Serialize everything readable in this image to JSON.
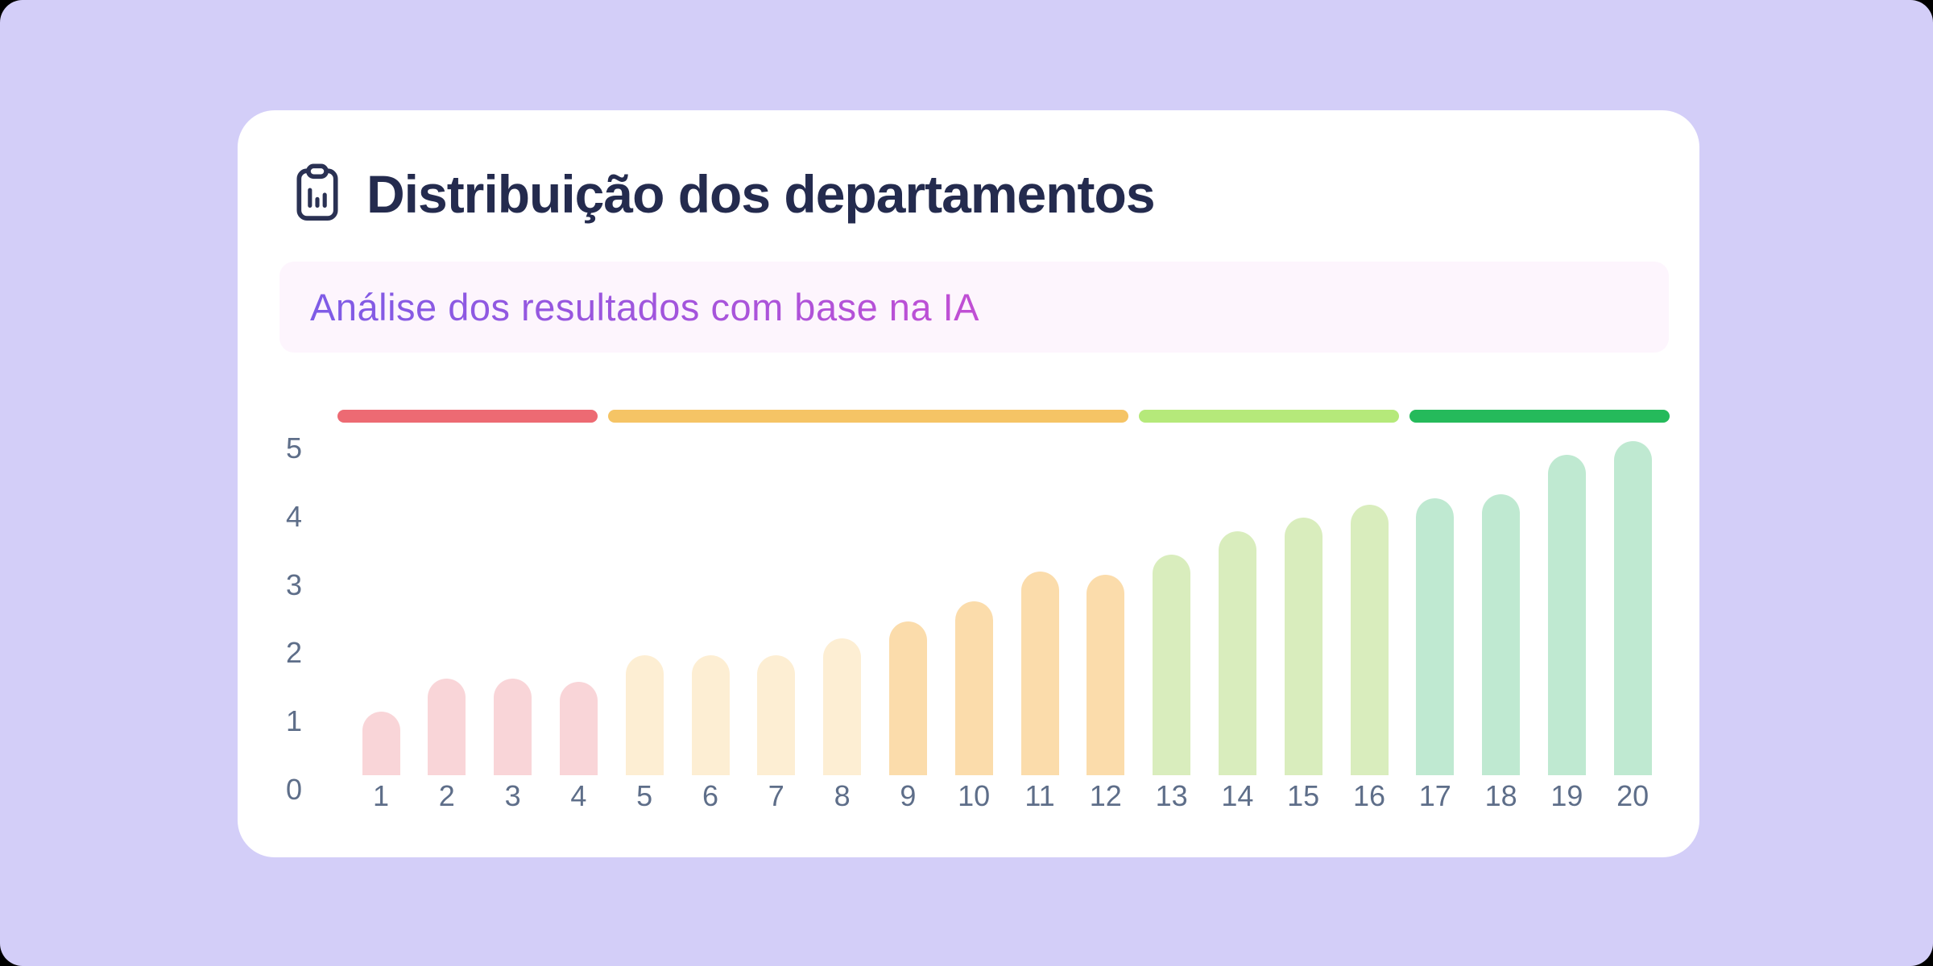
{
  "page": {
    "background_color": "#d3cef8"
  },
  "card": {
    "background_color": "#ffffff",
    "icon": "clipboard-chart-icon",
    "title": "Distribuição dos departamentos",
    "title_color": "#242b4e",
    "subtitle": "Análise dos resultados com base na IA",
    "subtitle_bg_color": "#fdf5fd",
    "subtitle_gradient_start": "#7e5ce6",
    "subtitle_gradient_end": "#c14fd4",
    "axis_label_color": "#5e6e89"
  },
  "chart_data": {
    "type": "bar",
    "title": "Distribuição dos departamentos",
    "subtitle": "Análise dos resultados com base na IA",
    "categories": [
      "1",
      "2",
      "3",
      "4",
      "5",
      "6",
      "7",
      "8",
      "9",
      "10",
      "11",
      "12",
      "13",
      "14",
      "15",
      "16",
      "17",
      "18",
      "19",
      "20"
    ],
    "values": [
      0.95,
      1.45,
      1.45,
      1.4,
      1.8,
      1.8,
      1.8,
      2.05,
      2.3,
      2.6,
      3.05,
      3.0,
      3.3,
      3.65,
      3.85,
      4.05,
      4.15,
      4.2,
      4.8,
      5.0
    ],
    "xlabel": "",
    "ylabel": "",
    "ylim": [
      0,
      5
    ],
    "yticks": [
      "0",
      "1",
      "2",
      "3",
      "4",
      "5"
    ],
    "grid": false,
    "legend": "none",
    "bar_color_groups": [
      {
        "name": "bars-1-4",
        "from": 1,
        "to": 4,
        "color": "#f9d5d8"
      },
      {
        "name": "bars-5-8",
        "from": 5,
        "to": 8,
        "color": "#fdeed3"
      },
      {
        "name": "bars-9-12",
        "from": 9,
        "to": 12,
        "color": "#fbdcab"
      },
      {
        "name": "bars-13-16",
        "from": 13,
        "to": 16,
        "color": "#d9edbd"
      },
      {
        "name": "bars-17-20",
        "from": 17,
        "to": 20,
        "color": "#bfe9d1"
      }
    ],
    "range_segments": [
      {
        "name": "segment-red",
        "from": 1,
        "to": 4,
        "color": "#ed6a73"
      },
      {
        "name": "segment-amber",
        "from": 5,
        "to": 12,
        "color": "#f5c465"
      },
      {
        "name": "segment-light-green",
        "from": 13,
        "to": 16,
        "color": "#b5e97a"
      },
      {
        "name": "segment-green",
        "from": 17,
        "to": 20,
        "color": "#25ba5b"
      }
    ]
  }
}
